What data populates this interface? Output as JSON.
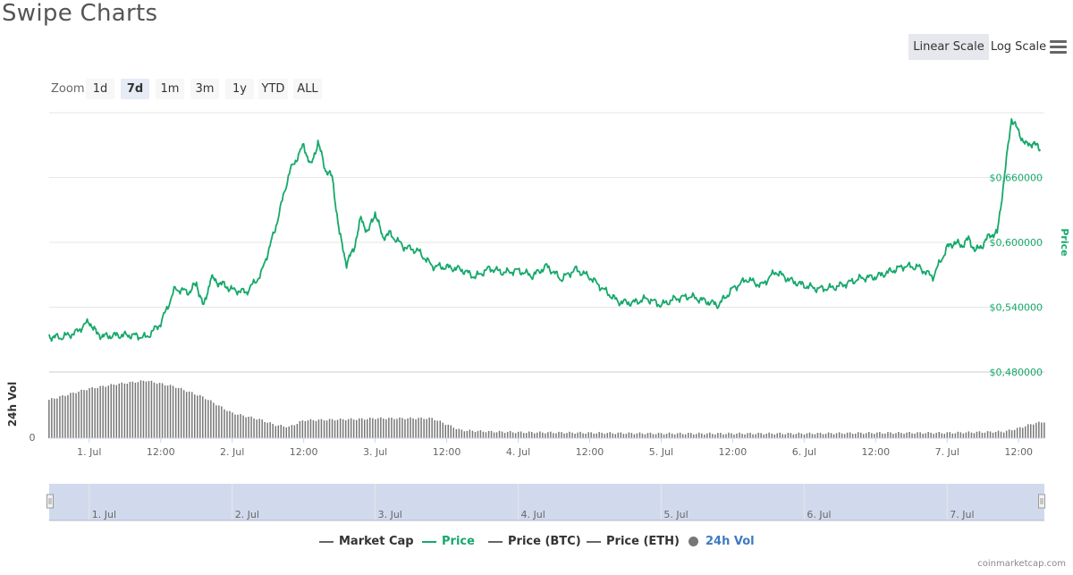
{
  "page": {
    "title": "Swipe Charts",
    "credits": "coinmarketcap.com"
  },
  "toolbar": {
    "linear_scale": "Linear Scale",
    "log_scale": "Log Scale",
    "active_scale": "Linear Scale"
  },
  "zoom": {
    "label": "Zoom",
    "buttons": [
      "1d",
      "7d",
      "1m",
      "3m",
      "1y",
      "YTD",
      "ALL"
    ],
    "active": "7d"
  },
  "legend": {
    "items": [
      {
        "label": "Market Cap",
        "color": "#666666",
        "symbol": "line",
        "active": false
      },
      {
        "label": "Price",
        "color": "#16a86b",
        "symbol": "line",
        "active": true
      },
      {
        "label": "Price (BTC)",
        "color": "#666666",
        "symbol": "line",
        "active": false
      },
      {
        "label": "Price (ETH)",
        "color": "#666666",
        "symbol": "line",
        "active": false
      },
      {
        "label": "24h Vol",
        "color": "#777777",
        "symbol": "dot",
        "active": true
      }
    ]
  },
  "colors": {
    "price_line": "#16a86b",
    "volume_bars": "#777777",
    "navigator_fill": "#ccd6eb",
    "grid": "#e6e6e6"
  },
  "chart_data": {
    "type": "line",
    "x_tick_labels": [
      "1. Jul",
      "12:00",
      "2. Jul",
      "12:00",
      "3. Jul",
      "12:00",
      "4. Jul",
      "12:00",
      "5. Jul",
      "12:00",
      "6. Jul",
      "12:00",
      "7. Jul",
      "12:00"
    ],
    "navigator_labels": [
      "1. Jul",
      "2. Jul",
      "3. Jul",
      "4. Jul",
      "5. Jul",
      "6. Jul",
      "7. Jul"
    ],
    "y_axis": {
      "label": "Price",
      "tick_labels": [
        "$0,660000",
        "$0,600000",
        "$0,540000",
        "$0,480000"
      ],
      "ylim": [
        0.48,
        0.72
      ],
      "unit": "USD"
    },
    "volume_axis": {
      "label": "24h Vol",
      "tick_labels": [
        "0"
      ]
    },
    "x_range_days": [
      0.72,
      7.68
    ],
    "series": [
      {
        "name": "Price",
        "x_days": [
          0.72,
          0.8,
          0.9,
          1.0,
          1.05,
          1.1,
          1.2,
          1.3,
          1.4,
          1.5,
          1.6,
          1.7,
          1.75,
          1.8,
          1.85,
          1.9,
          1.95,
          2.0,
          2.1,
          2.2,
          2.3,
          2.4,
          2.5,
          2.55,
          2.6,
          2.65,
          2.7,
          2.75,
          2.8,
          2.85,
          2.9,
          2.95,
          3.0,
          3.05,
          3.1,
          3.2,
          3.3,
          3.4,
          3.5,
          3.6,
          3.7,
          3.8,
          3.9,
          4.0,
          4.1,
          4.2,
          4.3,
          4.4,
          4.5,
          4.6,
          4.7,
          4.8,
          4.9,
          5.0,
          5.1,
          5.2,
          5.3,
          5.4,
          5.5,
          5.6,
          5.7,
          5.8,
          5.9,
          6.0,
          6.1,
          6.2,
          6.3,
          6.4,
          6.5,
          6.6,
          6.7,
          6.8,
          6.9,
          7.0,
          7.05,
          7.1,
          7.15,
          7.2,
          7.25,
          7.3,
          7.35,
          7.4,
          7.45,
          7.5,
          7.55,
          7.6,
          7.65
        ],
        "values": [
          0.513,
          0.512,
          0.516,
          0.527,
          0.516,
          0.513,
          0.514,
          0.514,
          0.512,
          0.525,
          0.557,
          0.554,
          0.562,
          0.54,
          0.567,
          0.563,
          0.56,
          0.556,
          0.554,
          0.57,
          0.612,
          0.665,
          0.69,
          0.67,
          0.693,
          0.668,
          0.66,
          0.608,
          0.58,
          0.594,
          0.622,
          0.609,
          0.628,
          0.605,
          0.608,
          0.596,
          0.592,
          0.578,
          0.577,
          0.575,
          0.568,
          0.576,
          0.572,
          0.574,
          0.569,
          0.578,
          0.566,
          0.575,
          0.568,
          0.556,
          0.545,
          0.544,
          0.548,
          0.542,
          0.548,
          0.55,
          0.546,
          0.542,
          0.557,
          0.566,
          0.56,
          0.573,
          0.565,
          0.56,
          0.557,
          0.558,
          0.562,
          0.567,
          0.568,
          0.573,
          0.578,
          0.577,
          0.568,
          0.595,
          0.6,
          0.597,
          0.603,
          0.592,
          0.598,
          0.607,
          0.608,
          0.66,
          0.715,
          0.702,
          0.69,
          0.692,
          0.686
        ]
      },
      {
        "name": "24h Vol",
        "type": "column",
        "x_days": [
          0.72,
          1.0,
          1.2,
          1.4,
          1.6,
          1.8,
          2.0,
          2.2,
          2.3,
          2.4,
          2.5,
          2.7,
          2.9,
          3.0,
          3.2,
          3.4,
          3.6,
          3.8,
          4.0,
          4.5,
          5.0,
          5.5,
          6.0,
          6.5,
          7.0,
          7.4,
          7.5,
          7.6,
          7.68
        ],
        "relative_values": [
          0.58,
          0.75,
          0.82,
          0.87,
          0.78,
          0.62,
          0.38,
          0.28,
          0.2,
          0.17,
          0.27,
          0.28,
          0.29,
          0.3,
          0.3,
          0.3,
          0.12,
          0.1,
          0.09,
          0.08,
          0.07,
          0.07,
          0.07,
          0.08,
          0.08,
          0.1,
          0.15,
          0.22,
          0.25
        ]
      }
    ]
  }
}
